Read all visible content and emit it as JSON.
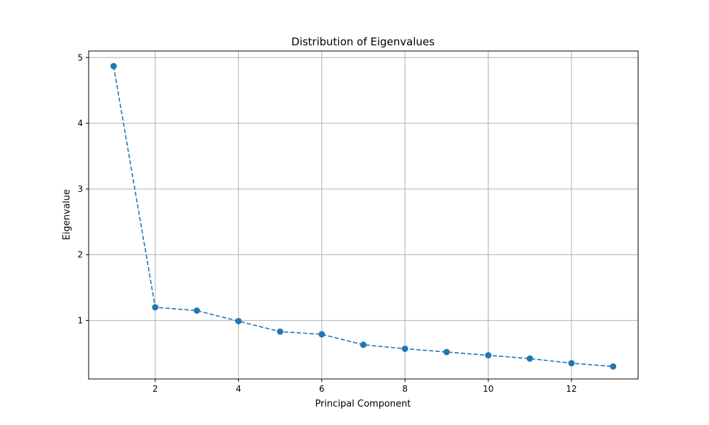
{
  "chart_data": {
    "type": "line",
    "title": "Distribution of Eigenvalues",
    "xlabel": "Principal Component",
    "ylabel": "Eigenvalue",
    "x": [
      1,
      2,
      3,
      4,
      5,
      6,
      7,
      8,
      9,
      10,
      11,
      12,
      13
    ],
    "series": [
      {
        "values": [
          4.87,
          1.2,
          1.15,
          0.99,
          0.83,
          0.79,
          0.63,
          0.57,
          0.52,
          0.47,
          0.42,
          0.35,
          0.3
        ]
      }
    ],
    "xlim": [
      0.4,
      13.6
    ],
    "ylim": [
      0.11,
      5.1
    ],
    "xticks": [
      2,
      4,
      6,
      8,
      10,
      12
    ],
    "yticks": [
      1,
      2,
      3,
      4,
      5
    ],
    "grid": true,
    "line_style": "dashed",
    "marker": "circle",
    "color": "#1f77b4"
  }
}
